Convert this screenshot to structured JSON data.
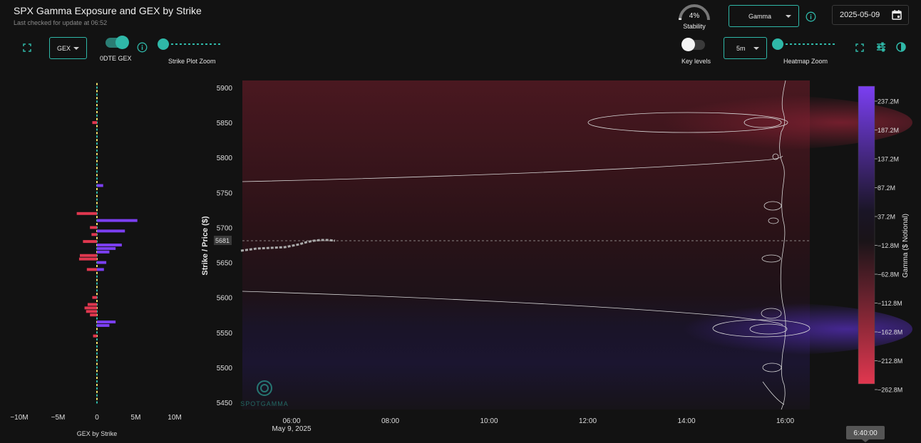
{
  "header": {
    "title": "SPX Gamma Exposure and GEX by Strike",
    "subtitle": "Last checked for update at 06:52"
  },
  "stability": {
    "value": "4%",
    "label": "Stability",
    "fraction": 0.04
  },
  "controls": {
    "metric_dropdown": "Gamma",
    "date": "2025-05-09",
    "gex_dropdown": "GEX",
    "dte_toggle_label": "0DTE GEX",
    "dte_toggle_on": true,
    "strike_zoom_label": "Strike Plot Zoom",
    "key_levels_label": "Key levels",
    "key_levels_on": false,
    "interval_dropdown": "5m",
    "heatmap_zoom_label": "Heatmap Zoom"
  },
  "strike_plot": {
    "x_ticks": [
      "−10M",
      "−5M",
      "0",
      "5M",
      "10M"
    ],
    "x_tick_values": [
      -10,
      -5,
      0,
      5,
      10
    ],
    "xlabel": "GEX by Strike",
    "bars": [
      {
        "strike": 5720,
        "gex": -2.6,
        "color": "#e0374f"
      },
      {
        "strike": 5710,
        "gex": 5.2,
        "color": "#7b3ff2"
      },
      {
        "strike": 5700,
        "gex": -0.9,
        "color": "#e0374f"
      },
      {
        "strike": 5695,
        "gex": 3.6,
        "color": "#7b3ff2"
      },
      {
        "strike": 5690,
        "gex": -0.7,
        "color": "#e0374f"
      },
      {
        "strike": 5680,
        "gex": -1.8,
        "color": "#e0374f"
      },
      {
        "strike": 5675,
        "gex": 3.2,
        "color": "#7b3ff2"
      },
      {
        "strike": 5670,
        "gex": 2.4,
        "color": "#7b3ff2"
      },
      {
        "strike": 5665,
        "gex": 1.6,
        "color": "#7b3ff2"
      },
      {
        "strike": 5660,
        "gex": -2.2,
        "color": "#e0374f"
      },
      {
        "strike": 5655,
        "gex": -2.3,
        "color": "#e0374f"
      },
      {
        "strike": 5650,
        "gex": 1.2,
        "color": "#7b3ff2"
      },
      {
        "strike": 5640,
        "gex": -1.3,
        "color": "#e0374f"
      },
      {
        "strike": 5600,
        "gex": -0.6,
        "color": "#e0374f"
      },
      {
        "strike": 5590,
        "gex": -1.2,
        "color": "#e0374f"
      },
      {
        "strike": 5585,
        "gex": -1.6,
        "color": "#e0374f"
      },
      {
        "strike": 5580,
        "gex": -1.4,
        "color": "#e0374f"
      },
      {
        "strike": 5575,
        "gex": -0.9,
        "color": "#e0374f"
      },
      {
        "strike": 5565,
        "gex": 2.4,
        "color": "#7b3ff2"
      },
      {
        "strike": 5560,
        "gex": 1.6,
        "color": "#7b3ff2"
      },
      {
        "strike": 5545,
        "gex": -0.5,
        "color": "#e0374f"
      },
      {
        "strike": 5850,
        "gex": -0.6,
        "color": "#e0374f"
      },
      {
        "strike": 5760,
        "gex": 0.8,
        "color": "#7b3ff2"
      },
      {
        "strike": 5640,
        "gex": 0.9,
        "color": "#7b3ff2"
      }
    ]
  },
  "heatmap": {
    "ylabel": "Strike / Price ($)",
    "y_ticks": [
      "5900",
      "5850",
      "5800",
      "5750",
      "5700",
      "5650",
      "5600",
      "5550",
      "5500",
      "5450"
    ],
    "x_ticks": [
      "06:00",
      "08:00",
      "10:00",
      "12:00",
      "14:00",
      "16:00"
    ],
    "x_sub": "May 9, 2025",
    "price_label": "5681",
    "watermark": "SPOTGAMMA",
    "hover_time": "6:40:00"
  },
  "colorbar": {
    "label": "Gamma ($ Notional)",
    "ticks": [
      "237.2M",
      "187.2M",
      "137.2M",
      "87.2M",
      "37.2M",
      "−12.8M",
      "−62.8M",
      "−112.8M",
      "−162.8M",
      "−212.8M",
      "−262.8M"
    ]
  },
  "colors": {
    "accent": "#2fb8a8",
    "positive": "#7b3ff2",
    "negative": "#e0374f"
  }
}
